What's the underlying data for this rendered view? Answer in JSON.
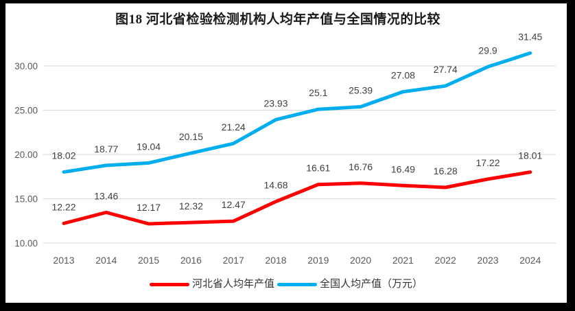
{
  "frame": {
    "border_color": "#000000",
    "background": "#FFFFFF"
  },
  "chart_data": {
    "type": "line",
    "title": "图18 河北省检验检测机构人均年产值与全国情况的比较",
    "categories": [
      "2013",
      "2014",
      "2015",
      "2016",
      "2017",
      "2018",
      "2019",
      "2020",
      "2021",
      "2022",
      "2023",
      "2024"
    ],
    "series": [
      {
        "id": "hebei",
        "name": "河北省人均年产值",
        "color": "#FF0000",
        "values": [
          12.22,
          13.46,
          12.17,
          12.32,
          12.47,
          14.68,
          16.61,
          16.76,
          16.49,
          16.28,
          17.22,
          18.01
        ]
      },
      {
        "id": "national",
        "name": "全国人均产值（万元）",
        "color": "#00AEEF",
        "values": [
          18.02,
          18.77,
          19.04,
          20.15,
          21.24,
          23.93,
          25.1,
          25.39,
          27.08,
          27.74,
          29.9,
          31.45
        ]
      }
    ],
    "y_axis": {
      "min": 10,
      "max": 30,
      "tick_values": [
        10,
        15,
        20,
        25,
        30
      ],
      "tick_labels": [
        "10.00",
        "15.00",
        "20.00",
        "25.00",
        "30.00"
      ]
    },
    "xlabel": "",
    "ylabel": "",
    "grid": "horizontal",
    "legend_position": "bottom",
    "data_labels": "above",
    "colors": {
      "gridline": "#D9D9D9",
      "axis_text": "#595959",
      "data_label": "#404040",
      "title_text": "#1A1A1A",
      "legend_text": "#333333"
    }
  }
}
